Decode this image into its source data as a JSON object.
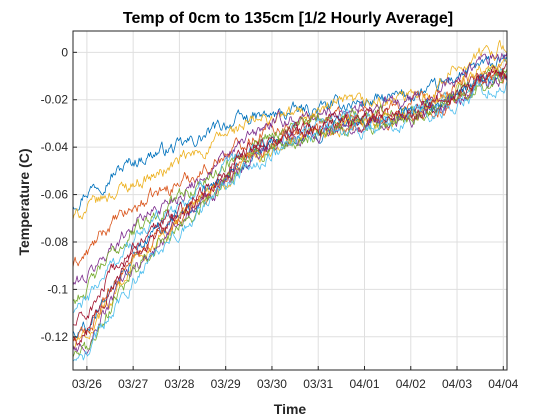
{
  "chart_data": {
    "type": "line",
    "title": "Temp of 0cm to 135cm [1/2 Hourly Average]",
    "xlabel": "Time",
    "ylabel": "Temperature (C)",
    "x_unit": "day",
    "x_range": [
      25.7,
      35.08
    ],
    "xlim": [
      "03/25",
      "04/04"
    ],
    "ylim": [
      -0.134,
      0.009
    ],
    "grid": true,
    "legend": "none",
    "x_ticks": [
      {
        "value": 26,
        "label": "03/26"
      },
      {
        "value": 27,
        "label": "03/27"
      },
      {
        "value": 28,
        "label": "03/28"
      },
      {
        "value": 29,
        "label": "03/29"
      },
      {
        "value": 30,
        "label": "03/30"
      },
      {
        "value": 31,
        "label": "03/31"
      },
      {
        "value": 32,
        "label": "04/01"
      },
      {
        "value": 33,
        "label": "04/02"
      },
      {
        "value": 34,
        "label": "04/03"
      },
      {
        "value": 35,
        "label": "04/04"
      }
    ],
    "y_ticks": [
      {
        "value": 0,
        "label": "0"
      },
      {
        "value": -0.02,
        "label": "-0.02"
      },
      {
        "value": -0.04,
        "label": "-0.04"
      },
      {
        "value": -0.06,
        "label": "-0.06"
      },
      {
        "value": -0.08,
        "label": "-0.08"
      },
      {
        "value": -0.1,
        "label": "-0.1"
      },
      {
        "value": -0.12,
        "label": "-0.12"
      }
    ],
    "series": [
      {
        "color": "#0072BD",
        "values": [
          [
            25.7,
            -0.064
          ],
          [
            26.0,
            -0.058
          ],
          [
            26.5,
            -0.052
          ],
          [
            27.0,
            -0.046
          ],
          [
            27.5,
            -0.042
          ],
          [
            28.0,
            -0.04
          ],
          [
            28.5,
            -0.036
          ],
          [
            29.0,
            -0.03
          ],
          [
            29.5,
            -0.028
          ],
          [
            30.0,
            -0.027
          ],
          [
            30.5,
            -0.025
          ],
          [
            31.0,
            -0.024
          ],
          [
            31.5,
            -0.022
          ],
          [
            32.0,
            -0.021
          ],
          [
            32.5,
            -0.02
          ],
          [
            33.0,
            -0.018
          ],
          [
            33.5,
            -0.016
          ],
          [
            34.0,
            -0.01
          ],
          [
            34.5,
            -0.006
          ],
          [
            35.08,
            -0.004
          ]
        ]
      },
      {
        "color": "#D95319",
        "values": [
          [
            25.7,
            -0.09
          ],
          [
            26.0,
            -0.085
          ],
          [
            26.5,
            -0.073
          ],
          [
            27.0,
            -0.066
          ],
          [
            27.5,
            -0.06
          ],
          [
            28.0,
            -0.055
          ],
          [
            28.5,
            -0.05
          ],
          [
            29.0,
            -0.043
          ],
          [
            29.5,
            -0.036
          ],
          [
            30.0,
            -0.032
          ],
          [
            30.5,
            -0.03
          ],
          [
            31.0,
            -0.028
          ],
          [
            31.5,
            -0.026
          ],
          [
            32.0,
            -0.025
          ],
          [
            32.5,
            -0.024
          ],
          [
            33.0,
            -0.022
          ],
          [
            33.5,
            -0.02
          ],
          [
            34.0,
            -0.015
          ],
          [
            34.5,
            -0.01
          ],
          [
            35.08,
            -0.008
          ]
        ]
      },
      {
        "color": "#EDB120",
        "values": [
          [
            25.7,
            -0.07
          ],
          [
            26.0,
            -0.066
          ],
          [
            26.5,
            -0.06
          ],
          [
            27.0,
            -0.055
          ],
          [
            27.5,
            -0.052
          ],
          [
            28.0,
            -0.046
          ],
          [
            28.5,
            -0.042
          ],
          [
            29.0,
            -0.035
          ],
          [
            29.5,
            -0.03
          ],
          [
            30.0,
            -0.028
          ],
          [
            30.5,
            -0.026
          ],
          [
            31.0,
            -0.025
          ],
          [
            31.5,
            -0.022
          ],
          [
            32.0,
            -0.022
          ],
          [
            32.5,
            -0.021
          ],
          [
            33.0,
            -0.019
          ],
          [
            33.5,
            -0.016
          ],
          [
            34.0,
            -0.006
          ],
          [
            34.5,
            -0.001
          ],
          [
            35.08,
            0.003
          ]
        ]
      },
      {
        "color": "#7E2F8E",
        "values": [
          [
            25.7,
            -0.098
          ],
          [
            26.0,
            -0.095
          ],
          [
            26.5,
            -0.083
          ],
          [
            27.0,
            -0.072
          ],
          [
            27.5,
            -0.066
          ],
          [
            28.0,
            -0.06
          ],
          [
            28.5,
            -0.052
          ],
          [
            29.0,
            -0.045
          ],
          [
            29.5,
            -0.036
          ],
          [
            30.0,
            -0.03
          ],
          [
            30.5,
            -0.028
          ],
          [
            31.0,
            -0.027
          ],
          [
            31.5,
            -0.024
          ],
          [
            32.0,
            -0.023
          ],
          [
            32.5,
            -0.022
          ],
          [
            33.0,
            -0.02
          ],
          [
            33.5,
            -0.018
          ],
          [
            34.0,
            -0.012
          ],
          [
            34.5,
            -0.004
          ],
          [
            35.08,
            -0.002
          ]
        ]
      },
      {
        "color": "#77AC30",
        "values": [
          [
            25.7,
            -0.105
          ],
          [
            26.0,
            -0.1
          ],
          [
            26.5,
            -0.086
          ],
          [
            27.0,
            -0.076
          ],
          [
            27.5,
            -0.068
          ],
          [
            28.0,
            -0.061
          ],
          [
            28.5,
            -0.055
          ],
          [
            29.0,
            -0.047
          ],
          [
            29.5,
            -0.039
          ],
          [
            30.0,
            -0.034
          ],
          [
            30.5,
            -0.031
          ],
          [
            31.0,
            -0.029
          ],
          [
            31.5,
            -0.027
          ],
          [
            32.0,
            -0.026
          ],
          [
            32.5,
            -0.025
          ],
          [
            33.0,
            -0.023
          ],
          [
            33.5,
            -0.021
          ],
          [
            34.0,
            -0.016
          ],
          [
            34.5,
            -0.011
          ],
          [
            35.08,
            -0.009
          ]
        ]
      },
      {
        "color": "#4DBEEE",
        "values": [
          [
            25.7,
            -0.11
          ],
          [
            26.0,
            -0.105
          ],
          [
            26.5,
            -0.09
          ],
          [
            27.0,
            -0.08
          ],
          [
            27.5,
            -0.071
          ],
          [
            28.0,
            -0.064
          ],
          [
            28.5,
            -0.057
          ],
          [
            29.0,
            -0.05
          ],
          [
            29.5,
            -0.042
          ],
          [
            30.0,
            -0.036
          ],
          [
            30.5,
            -0.033
          ],
          [
            31.0,
            -0.031
          ],
          [
            31.5,
            -0.029
          ],
          [
            32.0,
            -0.028
          ],
          [
            32.5,
            -0.027
          ],
          [
            33.0,
            -0.024
          ],
          [
            33.5,
            -0.022
          ],
          [
            34.0,
            -0.018
          ],
          [
            34.5,
            -0.013
          ],
          [
            35.08,
            -0.01
          ]
        ]
      },
      {
        "color": "#A2142F",
        "values": [
          [
            25.7,
            -0.115
          ],
          [
            26.0,
            -0.111
          ],
          [
            26.5,
            -0.095
          ],
          [
            27.0,
            -0.083
          ],
          [
            27.5,
            -0.074
          ],
          [
            28.0,
            -0.066
          ],
          [
            28.5,
            -0.059
          ],
          [
            29.0,
            -0.051
          ],
          [
            29.5,
            -0.043
          ],
          [
            30.0,
            -0.037
          ],
          [
            30.5,
            -0.034
          ],
          [
            31.0,
            -0.032
          ],
          [
            31.5,
            -0.03
          ],
          [
            32.0,
            -0.029
          ],
          [
            32.5,
            -0.028
          ],
          [
            33.0,
            -0.025
          ],
          [
            33.5,
            -0.023
          ],
          [
            34.0,
            -0.017
          ],
          [
            34.5,
            -0.012
          ],
          [
            35.08,
            -0.008
          ]
        ]
      },
      {
        "color": "#0072BD",
        "values": [
          [
            25.7,
            -0.118
          ],
          [
            26.0,
            -0.115
          ],
          [
            26.5,
            -0.098
          ],
          [
            27.0,
            -0.086
          ],
          [
            27.5,
            -0.076
          ],
          [
            28.0,
            -0.068
          ],
          [
            28.5,
            -0.061
          ],
          [
            29.0,
            -0.052
          ],
          [
            29.5,
            -0.044
          ],
          [
            30.0,
            -0.038
          ],
          [
            30.5,
            -0.035
          ],
          [
            31.0,
            -0.033
          ],
          [
            31.5,
            -0.03
          ],
          [
            32.0,
            -0.029
          ],
          [
            32.5,
            -0.028
          ],
          [
            33.0,
            -0.026
          ],
          [
            33.5,
            -0.023
          ],
          [
            34.0,
            -0.018
          ],
          [
            34.5,
            -0.012
          ],
          [
            35.08,
            -0.009
          ]
        ]
      },
      {
        "color": "#D95319",
        "values": [
          [
            25.7,
            -0.121
          ],
          [
            26.0,
            -0.118
          ],
          [
            26.5,
            -0.101
          ],
          [
            27.0,
            -0.088
          ],
          [
            27.5,
            -0.078
          ],
          [
            28.0,
            -0.07
          ],
          [
            28.5,
            -0.062
          ],
          [
            29.0,
            -0.053
          ],
          [
            29.5,
            -0.045
          ],
          [
            30.0,
            -0.039
          ],
          [
            30.5,
            -0.036
          ],
          [
            31.0,
            -0.033
          ],
          [
            31.5,
            -0.031
          ],
          [
            32.0,
            -0.03
          ],
          [
            32.5,
            -0.029
          ],
          [
            33.0,
            -0.026
          ],
          [
            33.5,
            -0.024
          ],
          [
            34.0,
            -0.019
          ],
          [
            34.5,
            -0.013
          ],
          [
            35.08,
            -0.01
          ]
        ]
      },
      {
        "color": "#EDB120",
        "values": [
          [
            25.7,
            -0.124
          ],
          [
            26.0,
            -0.12
          ],
          [
            26.5,
            -0.104
          ],
          [
            27.0,
            -0.09
          ],
          [
            27.5,
            -0.08
          ],
          [
            28.0,
            -0.071
          ],
          [
            28.5,
            -0.063
          ],
          [
            29.0,
            -0.054
          ],
          [
            29.5,
            -0.046
          ],
          [
            30.0,
            -0.04
          ],
          [
            30.5,
            -0.036
          ],
          [
            31.0,
            -0.034
          ],
          [
            31.5,
            -0.031
          ],
          [
            32.0,
            -0.03
          ],
          [
            32.5,
            -0.029
          ],
          [
            33.0,
            -0.027
          ],
          [
            33.5,
            -0.024
          ],
          [
            34.0,
            -0.014
          ],
          [
            34.5,
            -0.008
          ],
          [
            35.08,
            -0.005
          ]
        ]
      },
      {
        "color": "#7E2F8E",
        "values": [
          [
            25.7,
            -0.127
          ],
          [
            26.0,
            -0.123
          ],
          [
            26.5,
            -0.106
          ],
          [
            27.0,
            -0.092
          ],
          [
            27.5,
            -0.082
          ],
          [
            28.0,
            -0.072
          ],
          [
            28.5,
            -0.064
          ],
          [
            29.0,
            -0.055
          ],
          [
            29.5,
            -0.046
          ],
          [
            30.0,
            -0.04
          ],
          [
            30.5,
            -0.037
          ],
          [
            31.0,
            -0.034
          ],
          [
            31.5,
            -0.032
          ],
          [
            32.0,
            -0.031
          ],
          [
            32.5,
            -0.03
          ],
          [
            33.0,
            -0.027
          ],
          [
            33.5,
            -0.025
          ],
          [
            34.0,
            -0.02
          ],
          [
            34.5,
            -0.014
          ],
          [
            35.08,
            -0.011
          ]
        ]
      },
      {
        "color": "#77AC30",
        "values": [
          [
            25.7,
            -0.13
          ],
          [
            26.0,
            -0.126
          ],
          [
            26.5,
            -0.108
          ],
          [
            27.0,
            -0.094
          ],
          [
            27.5,
            -0.083
          ],
          [
            28.0,
            -0.074
          ],
          [
            28.5,
            -0.065
          ],
          [
            29.0,
            -0.056
          ],
          [
            29.5,
            -0.047
          ],
          [
            30.0,
            -0.041
          ],
          [
            30.5,
            -0.037
          ],
          [
            31.0,
            -0.035
          ],
          [
            31.5,
            -0.032
          ],
          [
            32.0,
            -0.031
          ],
          [
            32.5,
            -0.03
          ],
          [
            33.0,
            -0.028
          ],
          [
            33.5,
            -0.025
          ],
          [
            34.0,
            -0.02
          ],
          [
            34.5,
            -0.015
          ],
          [
            35.08,
            -0.012
          ]
        ]
      },
      {
        "color": "#4DBEEE",
        "values": [
          [
            25.7,
            -0.132
          ],
          [
            26.0,
            -0.128
          ],
          [
            26.5,
            -0.11
          ],
          [
            27.0,
            -0.096
          ],
          [
            27.5,
            -0.085
          ],
          [
            28.0,
            -0.075
          ],
          [
            28.5,
            -0.066
          ],
          [
            29.0,
            -0.057
          ],
          [
            29.5,
            -0.048
          ],
          [
            30.0,
            -0.042
          ],
          [
            30.5,
            -0.038
          ],
          [
            31.0,
            -0.035
          ],
          [
            31.5,
            -0.033
          ],
          [
            32.0,
            -0.032
          ],
          [
            32.5,
            -0.031
          ],
          [
            33.0,
            -0.028
          ],
          [
            33.5,
            -0.026
          ],
          [
            34.0,
            -0.021
          ],
          [
            34.5,
            -0.016
          ],
          [
            35.08,
            -0.013
          ]
        ]
      },
      {
        "color": "#A2142F",
        "values": [
          [
            25.7,
            -0.122
          ],
          [
            26.0,
            -0.119
          ],
          [
            26.5,
            -0.1
          ],
          [
            27.0,
            -0.087
          ],
          [
            27.5,
            -0.077
          ],
          [
            28.0,
            -0.068
          ],
          [
            28.5,
            -0.06
          ],
          [
            29.0,
            -0.05
          ],
          [
            29.5,
            -0.041
          ],
          [
            30.0,
            -0.036
          ],
          [
            30.5,
            -0.033
          ],
          [
            31.0,
            -0.031
          ],
          [
            31.5,
            -0.029
          ],
          [
            32.0,
            -0.028
          ],
          [
            32.5,
            -0.027
          ],
          [
            33.0,
            -0.025
          ],
          [
            33.5,
            -0.022
          ],
          [
            34.0,
            -0.017
          ],
          [
            34.5,
            -0.011
          ],
          [
            35.08,
            -0.007
          ]
        ]
      }
    ]
  }
}
